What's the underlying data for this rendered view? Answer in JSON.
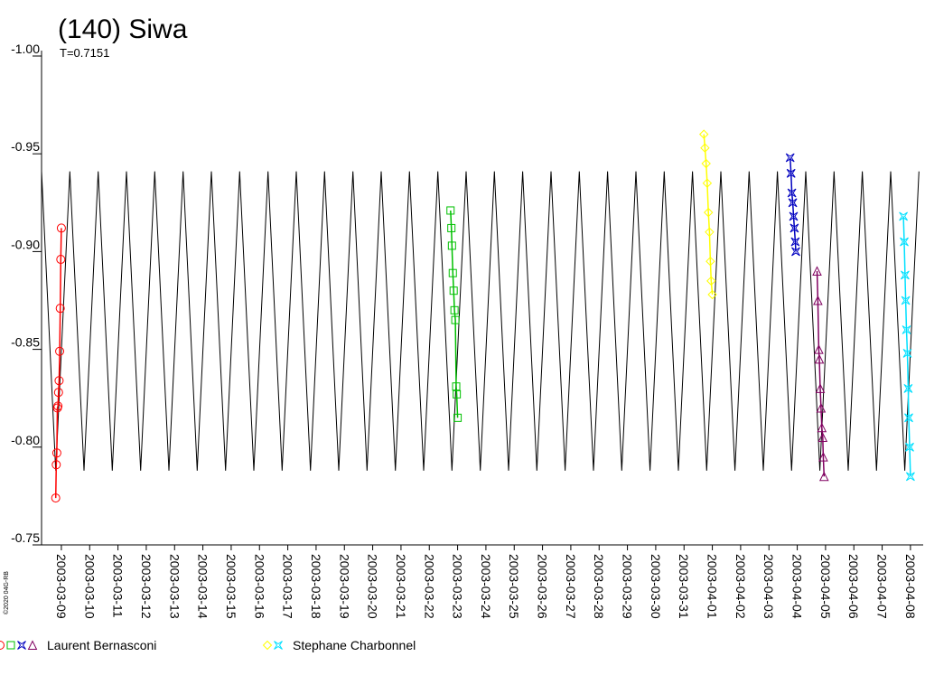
{
  "chart_data": {
    "type": "lightcurve",
    "title": "(140) Siwa",
    "subtitle": "T=0.7151",
    "credit": "©2020 04G-RB",
    "ylim": [
      -1.0,
      -0.75
    ],
    "yticks": [
      {
        "value": -1.0,
        "label": "-1.00"
      },
      {
        "value": -0.95,
        "label": "-0.95"
      },
      {
        "value": -0.9,
        "label": "-0.90"
      },
      {
        "value": -0.85,
        "label": "-0.85"
      },
      {
        "value": -0.8,
        "label": "-0.80"
      },
      {
        "value": -0.75,
        "label": "-0.75"
      }
    ],
    "y_inverted": true,
    "xlim": [
      -0.7,
      30.45
    ],
    "xticks": [
      {
        "value": 0,
        "label": "2003-03-09"
      },
      {
        "value": 1,
        "label": "2003-03-10"
      },
      {
        "value": 2,
        "label": "2003-03-11"
      },
      {
        "value": 3,
        "label": "2003-03-12"
      },
      {
        "value": 4,
        "label": "2003-03-13"
      },
      {
        "value": 5,
        "label": "2003-03-14"
      },
      {
        "value": 6,
        "label": "2003-03-15"
      },
      {
        "value": 7,
        "label": "2003-03-16"
      },
      {
        "value": 8,
        "label": "2003-03-17"
      },
      {
        "value": 9,
        "label": "2003-03-18"
      },
      {
        "value": 10,
        "label": "2003-03-19"
      },
      {
        "value": 11,
        "label": "2003-03-20"
      },
      {
        "value": 12,
        "label": "2003-03-21"
      },
      {
        "value": 13,
        "label": "2003-03-22"
      },
      {
        "value": 14,
        "label": "2003-03-23"
      },
      {
        "value": 15,
        "label": "2003-03-24"
      },
      {
        "value": 16,
        "label": "2003-03-25"
      },
      {
        "value": 17,
        "label": "2003-03-26"
      },
      {
        "value": 18,
        "label": "2003-03-27"
      },
      {
        "value": 19,
        "label": "2003-03-28"
      },
      {
        "value": 20,
        "label": "2003-03-29"
      },
      {
        "value": 21,
        "label": "2003-03-30"
      },
      {
        "value": 22,
        "label": "2003-03-31"
      },
      {
        "value": 23,
        "label": "2003-04-01"
      },
      {
        "value": 24,
        "label": "2003-04-02"
      },
      {
        "value": 25,
        "label": "2003-04-03"
      },
      {
        "value": 26,
        "label": "2003-04-04"
      },
      {
        "value": 27,
        "label": "2003-04-05"
      },
      {
        "value": 28,
        "label": "2003-04-06"
      },
      {
        "value": 29,
        "label": "2003-04-07"
      },
      {
        "value": 30,
        "label": "2003-04-08"
      }
    ],
    "model": {
      "color": "#000000",
      "x": [
        -0.7,
        -0.2,
        0.3,
        0.8,
        1.3,
        1.8,
        2.3,
        2.8,
        3.3,
        3.8,
        4.3,
        4.8,
        5.3,
        5.8,
        6.3,
        6.8,
        7.3,
        7.8,
        8.3,
        8.8,
        9.3,
        9.8,
        10.3,
        10.8,
        11.3,
        11.8,
        12.3,
        12.8,
        13.3,
        13.8,
        14.3,
        14.8,
        15.3,
        15.8,
        16.3,
        16.8,
        17.3,
        17.8,
        18.3,
        18.8,
        19.3,
        19.8,
        20.3,
        20.8,
        21.3,
        21.8,
        22.3,
        22.8,
        23.3,
        23.8,
        24.3,
        24.8,
        25.3,
        25.8,
        26.3,
        26.8,
        27.3,
        27.8,
        28.3,
        28.8,
        29.3,
        29.8,
        30.3
      ],
      "values": [
        -0.941,
        -0.788,
        -0.941,
        -0.788,
        -0.941,
        -0.788,
        -0.941,
        -0.788,
        -0.941,
        -0.788,
        -0.941,
        -0.788,
        -0.941,
        -0.788,
        -0.941,
        -0.788,
        -0.941,
        -0.788,
        -0.941,
        -0.788,
        -0.941,
        -0.788,
        -0.941,
        -0.788,
        -0.941,
        -0.788,
        -0.941,
        -0.788,
        -0.941,
        -0.788,
        -0.941,
        -0.788,
        -0.941,
        -0.788,
        -0.941,
        -0.788,
        -0.941,
        -0.788,
        -0.941,
        -0.788,
        -0.941,
        -0.788,
        -0.941,
        -0.788,
        -0.941,
        -0.788,
        -0.941,
        -0.788,
        -0.941,
        -0.788,
        -0.941,
        -0.788,
        -0.941,
        -0.788,
        -0.941,
        -0.788,
        -0.941,
        -0.788,
        -0.941,
        -0.788,
        -0.941,
        -0.788,
        -0.941
      ]
    },
    "series": [
      {
        "name": "Laurent Bernasconi",
        "color": "#ff0000",
        "marker": "circle",
        "x": [
          -0.2,
          -0.18,
          -0.16,
          -0.14,
          -0.12,
          -0.1,
          -0.08,
          -0.06,
          -0.04,
          -0.02,
          0.0
        ],
        "values": [
          -0.774,
          -0.791,
          -0.797,
          -0.82,
          -0.821,
          -0.828,
          -0.834,
          -0.849,
          -0.871,
          -0.896,
          -0.912
        ]
      },
      {
        "name": "Laurent Bernasconi",
        "color": "#00c000",
        "marker": "square",
        "x": [
          13.75,
          13.78,
          13.8,
          13.83,
          13.86,
          13.89,
          13.92,
          13.95,
          13.97,
          14.0
        ],
        "values": [
          -0.921,
          -0.912,
          -0.903,
          -0.889,
          -0.88,
          -0.87,
          -0.865,
          -0.831,
          -0.827,
          -0.815
        ]
      },
      {
        "name": "Laurent Bernasconi",
        "color": "#0000c0",
        "marker": "star",
        "x": [
          25.75,
          25.78,
          25.81,
          25.84,
          25.87,
          25.9,
          25.93,
          25.95
        ],
        "values": [
          -0.948,
          -0.94,
          -0.93,
          -0.925,
          -0.918,
          -0.912,
          -0.905,
          -0.9
        ]
      },
      {
        "name": "Laurent Bernasconi",
        "color": "#800060",
        "marker": "triangle",
        "x": [
          26.7,
          26.73,
          26.76,
          26.78,
          26.81,
          26.84,
          26.87,
          26.9,
          26.92,
          26.95
        ],
        "values": [
          -0.89,
          -0.875,
          -0.85,
          -0.845,
          -0.83,
          -0.82,
          -0.81,
          -0.805,
          -0.795,
          -0.785
        ]
      },
      {
        "name": "Stephane Charbonnel",
        "color": "#ffff00",
        "marker": "diamond",
        "x": [
          22.7,
          22.74,
          22.78,
          22.82,
          22.86,
          22.9,
          22.93,
          22.96,
          23.0
        ],
        "values": [
          -0.96,
          -0.953,
          -0.945,
          -0.935,
          -0.92,
          -0.91,
          -0.895,
          -0.885,
          -0.878
        ]
      },
      {
        "name": "Stephane Charbonnel",
        "color": "#00e0ff",
        "marker": "star",
        "x": [
          29.75,
          29.78,
          29.81,
          29.83,
          29.86,
          29.89,
          29.92,
          29.94,
          29.97,
          30.0
        ],
        "values": [
          -0.918,
          -0.905,
          -0.888,
          -0.875,
          -0.86,
          -0.848,
          -0.83,
          -0.815,
          -0.8,
          -0.785
        ]
      }
    ]
  }
}
